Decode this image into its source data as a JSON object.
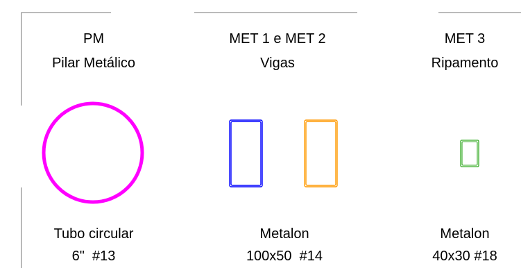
{
  "columns": [
    {
      "code": "PM",
      "name": "Pilar Metálico",
      "spec_line1": "Tubo circular",
      "spec_line2": "6\"  #13",
      "shape": "circle",
      "colors": [
        "#ff00ff"
      ]
    },
    {
      "code": "MET 1 e MET 2",
      "name": "Vigas",
      "spec_line1": "Metalon",
      "spec_line2": "100x50  #14",
      "shape": "rectangle-pair",
      "colors": [
        "#0000ff",
        "#ff9900"
      ]
    },
    {
      "code": "MET 3",
      "name": "Ripamento",
      "spec_line1": "Metalon",
      "spec_line2": "40x30 #18",
      "shape": "rectangle",
      "colors": [
        "#33aa22"
      ]
    }
  ]
}
